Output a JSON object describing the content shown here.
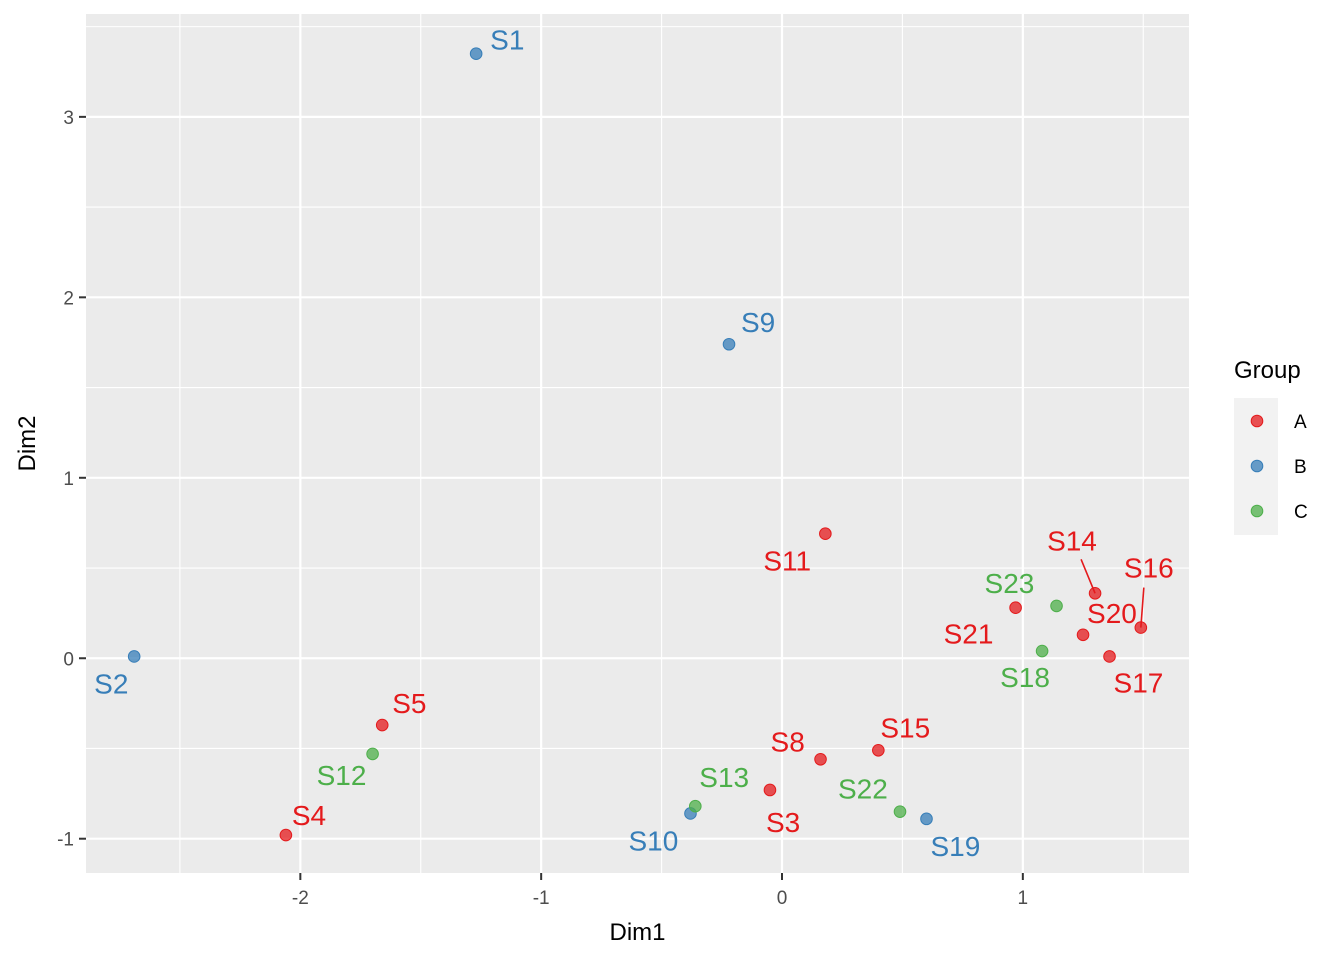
{
  "chart_data": {
    "type": "scatter",
    "xlabel": "Dim1",
    "ylabel": "Dim2",
    "xlim": [
      -2.89,
      1.69
    ],
    "ylim": [
      -1.19,
      3.57
    ],
    "x_ticks": [
      -2,
      -1,
      0,
      1
    ],
    "y_ticks": [
      -1,
      0,
      1,
      2,
      3
    ],
    "grid": true,
    "legend": {
      "title": "Group",
      "placement": "right",
      "entries": [
        {
          "name": "A",
          "color": "#E41A1C"
        },
        {
          "name": "B",
          "color": "#377EB8"
        },
        {
          "name": "C",
          "color": "#4DAF4A"
        }
      ]
    },
    "points": [
      {
        "label": "S1",
        "group": "B",
        "x": -1.27,
        "y": 3.35
      },
      {
        "label": "S2",
        "group": "B",
        "x": -2.69,
        "y": 0.01
      },
      {
        "label": "S3",
        "group": "A",
        "x": -0.05,
        "y": -0.73
      },
      {
        "label": "S4",
        "group": "A",
        "x": -2.06,
        "y": -0.98
      },
      {
        "label": "S5",
        "group": "A",
        "x": -1.66,
        "y": -0.37
      },
      {
        "label": "S8",
        "group": "A",
        "x": 0.16,
        "y": -0.56
      },
      {
        "label": "S9",
        "group": "B",
        "x": -0.22,
        "y": 1.74
      },
      {
        "label": "S10",
        "group": "B",
        "x": -0.38,
        "y": -0.86
      },
      {
        "label": "S11",
        "group": "A",
        "x": 0.18,
        "y": 0.69
      },
      {
        "label": "S12",
        "group": "C",
        "x": -1.7,
        "y": -0.53
      },
      {
        "label": "S13",
        "group": "C",
        "x": -0.36,
        "y": -0.82
      },
      {
        "label": "S14",
        "group": "A",
        "x": 1.3,
        "y": 0.36
      },
      {
        "label": "S15",
        "group": "A",
        "x": 0.4,
        "y": -0.51
      },
      {
        "label": "S16",
        "group": "A",
        "x": 1.49,
        "y": 0.17
      },
      {
        "label": "S17",
        "group": "A",
        "x": 1.36,
        "y": 0.01
      },
      {
        "label": "S18",
        "group": "C",
        "x": 1.08,
        "y": 0.04
      },
      {
        "label": "S19",
        "group": "B",
        "x": 0.6,
        "y": -0.89
      },
      {
        "label": "S20",
        "group": "A",
        "x": 1.25,
        "y": 0.13
      },
      {
        "label": "S21",
        "group": "A",
        "x": 0.97,
        "y": 0.28
      },
      {
        "label": "S22",
        "group": "C",
        "x": 0.49,
        "y": -0.85
      },
      {
        "label": "S23",
        "group": "C",
        "x": 1.14,
        "y": 0.29
      }
    ]
  }
}
